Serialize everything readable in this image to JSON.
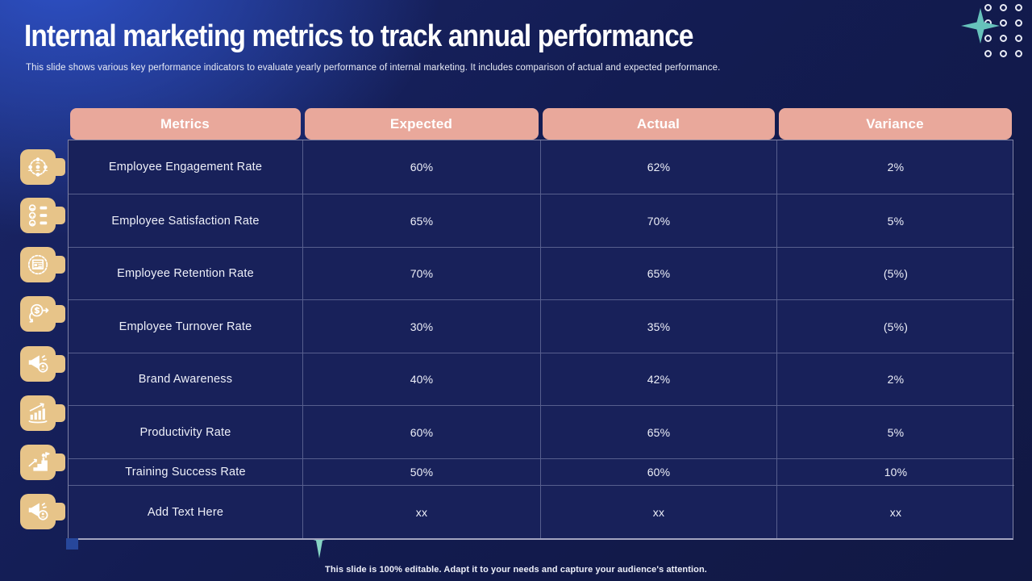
{
  "slide": {
    "title": "Internal marketing metrics to track annual performance",
    "subtitle": "This slide shows various key performance indicators to evaluate yearly performance of internal marketing. It includes comparison of actual and expected performance.",
    "footer": "This slide is 100% editable. Adapt it to your needs and capture your audience's attention."
  },
  "table": {
    "headers": [
      "Metrics",
      "Expected",
      "Actual",
      "Variance"
    ],
    "rows": [
      {
        "metric": "Employee Engagement Rate",
        "expected": "60%",
        "actual": "62%",
        "variance": "2%"
      },
      {
        "metric": "Employee Satisfaction Rate",
        "expected": "65%",
        "actual": "70%",
        "variance": "5%"
      },
      {
        "metric": "Employee Retention Rate",
        "expected": "70%",
        "actual": "65%",
        "variance": "(5%)"
      },
      {
        "metric": "Employee Turnover Rate",
        "expected": "30%",
        "actual": "35%",
        "variance": "(5%)"
      },
      {
        "metric": "Brand Awareness",
        "expected": "40%",
        "actual": "42%",
        "variance": "2%"
      },
      {
        "metric": "Productivity Rate",
        "expected": "60%",
        "actual": "65%",
        "variance": "5%"
      },
      {
        "metric": "Training Success Rate",
        "expected": "50%",
        "actual": "60%",
        "variance": "10%"
      },
      {
        "metric": "Add Text Here",
        "expected": "xx",
        "actual": "xx",
        "variance": "xx"
      }
    ]
  },
  "icons": [
    "org-people-network-icon",
    "satisfaction-rating-icon",
    "retention-document-icon",
    "dollar-turnover-icon",
    "megaphone-target-icon",
    "growth-chart-icon",
    "career-stairs-icon",
    "megaphone-announce-icon"
  ],
  "decorations": {
    "dot_grid_count": 12,
    "sparkle_star_count": 2
  },
  "colors": {
    "background_navy": "#131c52",
    "glow_blue": "#2d50c4",
    "table_cell_navy": "#18215a",
    "header_salmon": "#e9a89b",
    "icon_tan": "#e7c489",
    "star_teal": "#66c2bb",
    "star_mint": "#86d4c4",
    "grid_line": "#8c94b9",
    "text_white": "#f2f4fb",
    "chip_blue": "#27479b"
  }
}
